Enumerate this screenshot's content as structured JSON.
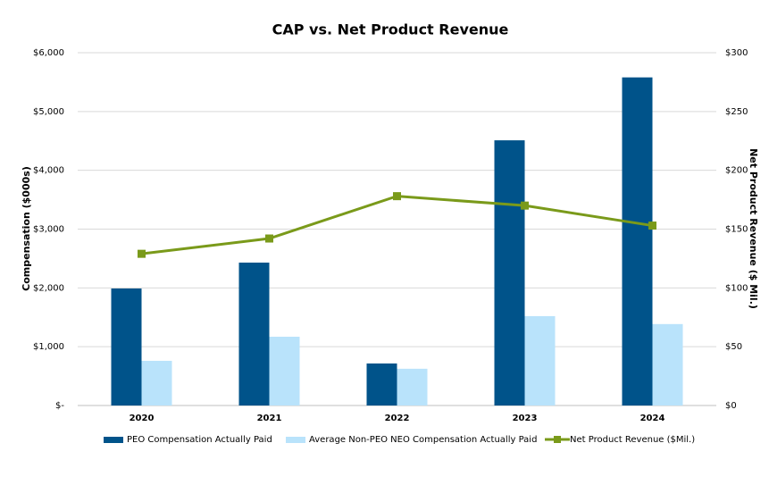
{
  "chart_data": {
    "type": "bar",
    "title": "CAP vs. Net Product Revenue",
    "y_label": "Compensation ($000s)",
    "y2_label": "Net Product Revenue ($ Mil.)",
    "categories": [
      "2020",
      "2021",
      "2022",
      "2023",
      "2024"
    ],
    "series": [
      {
        "name": "PEO Compensation Actually Paid",
        "color": "#00538a",
        "type": "bar",
        "values": [
          1990,
          2430,
          715,
          4510,
          5580
        ]
      },
      {
        "name": "Average Non-PEO NEO Compensation Actually Paid",
        "color": "#b9e3fb",
        "type": "bar",
        "values": [
          760,
          1170,
          625,
          1520,
          1385
        ]
      },
      {
        "name": "Net Product Revenue ($Mil.)",
        "color": "#7a9a1a",
        "type": "line",
        "axis": "y2",
        "values": [
          129,
          142,
          178,
          170,
          153
        ]
      }
    ],
    "ylim": [
      0,
      6000
    ],
    "yticks": [
      {
        "value": 0,
        "label": "$-"
      },
      {
        "value": 1000,
        "label": "$1,000"
      },
      {
        "value": 2000,
        "label": "$2,000"
      },
      {
        "value": 3000,
        "label": "$3,000"
      },
      {
        "value": 4000,
        "label": "$4,000"
      },
      {
        "value": 5000,
        "label": "$5,000"
      },
      {
        "value": 6000,
        "label": "$6,000"
      }
    ],
    "y2lim": [
      0,
      300
    ],
    "y2ticks": [
      {
        "value": 0,
        "label": "$0"
      },
      {
        "value": 50,
        "label": "$50"
      },
      {
        "value": 100,
        "label": "$100"
      },
      {
        "value": 150,
        "label": "$150"
      },
      {
        "value": 200,
        "label": "$200"
      },
      {
        "value": 250,
        "label": "$250"
      },
      {
        "value": 300,
        "label": "$300"
      }
    ],
    "grid": true,
    "legend": "bottom"
  }
}
